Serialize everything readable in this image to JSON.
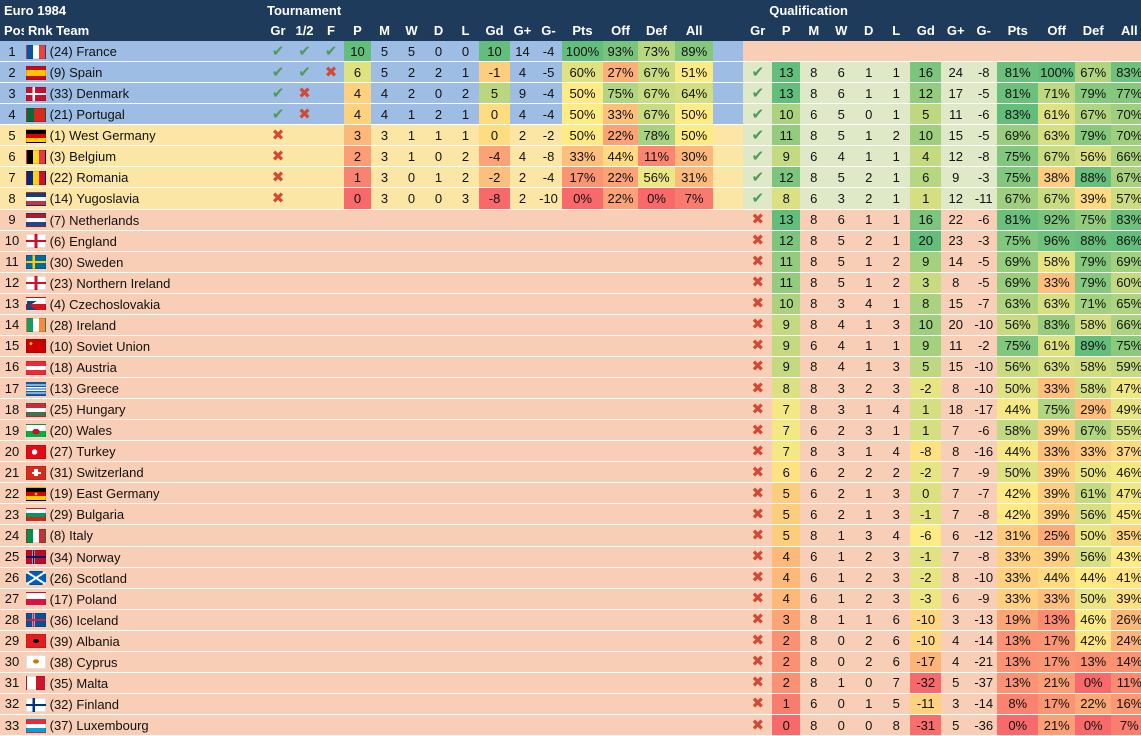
{
  "title": "Euro 1984",
  "group_headers": {
    "tournament": "Tournament",
    "qualification": "Qualification"
  },
  "columns": {
    "pos": "Pos",
    "rnk_team": "Rnk Team",
    "tournament": [
      "Gr",
      "1/2",
      "F",
      "P",
      "M",
      "W",
      "D",
      "L",
      "Gd",
      "G+",
      "G-",
      "Pts",
      "Off",
      "Def",
      "All"
    ],
    "qualification": [
      "Gr",
      "P",
      "M",
      "W",
      "D",
      "L",
      "Gd",
      "G+",
      "G-",
      "Pts",
      "Off",
      "Def",
      "All"
    ]
  },
  "colors": {
    "header_bg": "#1f3b5c",
    "zone_blue": "#9dbde4",
    "zone_yellow": "#fbe6a6",
    "zone_peach": "#f8cfb6",
    "scale_low": "#f8696b",
    "scale_mid": "#ffeb84",
    "scale_high": "#63be7b",
    "check": "#4f9a5c",
    "cross": "#d24a35"
  },
  "rows": [
    {
      "pos": "1",
      "rank": "(24)",
      "team": "France",
      "flag": "france-flag",
      "zone": "blue",
      "t": {
        "gr": "ok",
        "semi": "ok",
        "final": "ok",
        "P": "10",
        "M": "5",
        "W": "5",
        "D": "0",
        "L": "0",
        "Gd": "10",
        "Gplus": "14",
        "Gminus": "-4",
        "Pts": "100%",
        "Off": "93%",
        "Def": "73%",
        "All": "89%"
      },
      "q": null
    },
    {
      "pos": "2",
      "rank": "(9)",
      "team": "Spain",
      "flag": "spain-flag",
      "zone": "blue",
      "t": {
        "gr": "ok",
        "semi": "ok",
        "final": "x",
        "P": "6",
        "M": "5",
        "W": "2",
        "D": "2",
        "L": "1",
        "Gd": "-1",
        "Gplus": "4",
        "Gminus": "-5",
        "Pts": "60%",
        "Off": "27%",
        "Def": "67%",
        "All": "51%"
      },
      "q": {
        "gr": "ok",
        "P": "13",
        "M": "8",
        "W": "6",
        "D": "1",
        "L": "1",
        "Gd": "16",
        "Gplus": "24",
        "Gminus": "-8",
        "Pts": "81%",
        "Off": "100%",
        "Def": "67%",
        "All": "83%"
      }
    },
    {
      "pos": "3",
      "rank": "(33)",
      "team": "Denmark",
      "flag": "denmark-flag",
      "zone": "blue",
      "t": {
        "gr": "ok",
        "semi": "x",
        "final": "",
        "P": "4",
        "M": "4",
        "W": "2",
        "D": "0",
        "L": "2",
        "Gd": "5",
        "Gplus": "9",
        "Gminus": "-4",
        "Pts": "50%",
        "Off": "75%",
        "Def": "67%",
        "All": "64%"
      },
      "q": {
        "gr": "ok",
        "P": "13",
        "M": "8",
        "W": "6",
        "D": "1",
        "L": "1",
        "Gd": "12",
        "Gplus": "17",
        "Gminus": "-5",
        "Pts": "81%",
        "Off": "71%",
        "Def": "79%",
        "All": "77%"
      }
    },
    {
      "pos": "4",
      "rank": "(21)",
      "team": "Portugal",
      "flag": "portugal-flag",
      "zone": "blue",
      "t": {
        "gr": "ok",
        "semi": "x",
        "final": "",
        "P": "4",
        "M": "4",
        "W": "1",
        "D": "2",
        "L": "1",
        "Gd": "0",
        "Gplus": "4",
        "Gminus": "-4",
        "Pts": "50%",
        "Off": "33%",
        "Def": "67%",
        "All": "50%"
      },
      "q": {
        "gr": "ok",
        "P": "10",
        "M": "6",
        "W": "5",
        "D": "0",
        "L": "1",
        "Gd": "5",
        "Gplus": "11",
        "Gminus": "-6",
        "Pts": "83%",
        "Off": "61%",
        "Def": "67%",
        "All": "70%"
      }
    },
    {
      "pos": "5",
      "rank": "(1)",
      "team": "West Germany",
      "flag": "west-germany-flag",
      "zone": "yellow",
      "t": {
        "gr": "x",
        "semi": "",
        "final": "",
        "P": "3",
        "M": "3",
        "W": "1",
        "D": "1",
        "L": "1",
        "Gd": "0",
        "Gplus": "2",
        "Gminus": "-2",
        "Pts": "50%",
        "Off": "22%",
        "Def": "78%",
        "All": "50%"
      },
      "q": {
        "gr": "ok",
        "P": "11",
        "M": "8",
        "W": "5",
        "D": "1",
        "L": "2",
        "Gd": "10",
        "Gplus": "15",
        "Gminus": "-5",
        "Pts": "69%",
        "Off": "63%",
        "Def": "79%",
        "All": "70%"
      }
    },
    {
      "pos": "6",
      "rank": "(3)",
      "team": "Belgium",
      "flag": "belgium-flag",
      "zone": "yellow",
      "t": {
        "gr": "x",
        "semi": "",
        "final": "",
        "P": "2",
        "M": "3",
        "W": "1",
        "D": "0",
        "L": "2",
        "Gd": "-4",
        "Gplus": "4",
        "Gminus": "-8",
        "Pts": "33%",
        "Off": "44%",
        "Def": "11%",
        "All": "30%"
      },
      "q": {
        "gr": "ok",
        "P": "9",
        "M": "6",
        "W": "4",
        "D": "1",
        "L": "1",
        "Gd": "4",
        "Gplus": "12",
        "Gminus": "-8",
        "Pts": "75%",
        "Off": "67%",
        "Def": "56%",
        "All": "66%"
      }
    },
    {
      "pos": "7",
      "rank": "(22)",
      "team": "Romania",
      "flag": "romania-flag",
      "zone": "yellow",
      "t": {
        "gr": "x",
        "semi": "",
        "final": "",
        "P": "1",
        "M": "3",
        "W": "0",
        "D": "1",
        "L": "2",
        "Gd": "-2",
        "Gplus": "2",
        "Gminus": "-4",
        "Pts": "17%",
        "Off": "22%",
        "Def": "56%",
        "All": "31%"
      },
      "q": {
        "gr": "ok",
        "P": "12",
        "M": "8",
        "W": "5",
        "D": "2",
        "L": "1",
        "Gd": "6",
        "Gplus": "9",
        "Gminus": "-3",
        "Pts": "75%",
        "Off": "38%",
        "Def": "88%",
        "All": "67%"
      }
    },
    {
      "pos": "8",
      "rank": "(14)",
      "team": "Yugoslavia",
      "flag": "yugoslavia-flag",
      "zone": "yellow",
      "t": {
        "gr": "x",
        "semi": "",
        "final": "",
        "P": "0",
        "M": "3",
        "W": "0",
        "D": "0",
        "L": "3",
        "Gd": "-8",
        "Gplus": "2",
        "Gminus": "-10",
        "Pts": "0%",
        "Off": "22%",
        "Def": "0%",
        "All": "7%"
      },
      "q": {
        "gr": "ok",
        "P": "8",
        "M": "6",
        "W": "3",
        "D": "2",
        "L": "1",
        "Gd": "1",
        "Gplus": "12",
        "Gminus": "-11",
        "Pts": "67%",
        "Off": "67%",
        "Def": "39%",
        "All": "57%"
      }
    },
    {
      "pos": "9",
      "rank": "(7)",
      "team": "Netherlands",
      "flag": "netherlands-flag",
      "zone": "peach",
      "t": null,
      "q": {
        "gr": "x",
        "P": "13",
        "M": "8",
        "W": "6",
        "D": "1",
        "L": "1",
        "Gd": "16",
        "Gplus": "22",
        "Gminus": "-6",
        "Pts": "81%",
        "Off": "92%",
        "Def": "75%",
        "All": "83%"
      }
    },
    {
      "pos": "10",
      "rank": "(6)",
      "team": "England",
      "flag": "england-flag",
      "zone": "peach",
      "t": null,
      "q": {
        "gr": "x",
        "P": "12",
        "M": "8",
        "W": "5",
        "D": "2",
        "L": "1",
        "Gd": "20",
        "Gplus": "23",
        "Gminus": "-3",
        "Pts": "75%",
        "Off": "96%",
        "Def": "88%",
        "All": "86%"
      }
    },
    {
      "pos": "11",
      "rank": "(30)",
      "team": "Sweden",
      "flag": "sweden-flag",
      "zone": "peach",
      "t": null,
      "q": {
        "gr": "x",
        "P": "11",
        "M": "8",
        "W": "5",
        "D": "1",
        "L": "2",
        "Gd": "9",
        "Gplus": "14",
        "Gminus": "-5",
        "Pts": "69%",
        "Off": "58%",
        "Def": "79%",
        "All": "69%"
      }
    },
    {
      "pos": "12",
      "rank": "(23)",
      "team": "Northern Ireland",
      "flag": "northern-ireland-flag",
      "zone": "peach",
      "t": null,
      "q": {
        "gr": "x",
        "P": "11",
        "M": "8",
        "W": "5",
        "D": "1",
        "L": "2",
        "Gd": "3",
        "Gplus": "8",
        "Gminus": "-5",
        "Pts": "69%",
        "Off": "33%",
        "Def": "79%",
        "All": "60%"
      }
    },
    {
      "pos": "13",
      "rank": "(4)",
      "team": "Czechoslovakia",
      "flag": "czechoslovakia-flag",
      "zone": "peach",
      "t": null,
      "q": {
        "gr": "x",
        "P": "10",
        "M": "8",
        "W": "3",
        "D": "4",
        "L": "1",
        "Gd": "8",
        "Gplus": "15",
        "Gminus": "-7",
        "Pts": "63%",
        "Off": "63%",
        "Def": "71%",
        "All": "65%"
      }
    },
    {
      "pos": "14",
      "rank": "(28)",
      "team": "Ireland",
      "flag": "ireland-flag",
      "zone": "peach",
      "t": null,
      "q": {
        "gr": "x",
        "P": "9",
        "M": "8",
        "W": "4",
        "D": "1",
        "L": "3",
        "Gd": "10",
        "Gplus": "20",
        "Gminus": "-10",
        "Pts": "56%",
        "Off": "83%",
        "Def": "58%",
        "All": "66%"
      }
    },
    {
      "pos": "15",
      "rank": "(10)",
      "team": "Soviet Union",
      "flag": "soviet-union-flag",
      "zone": "peach",
      "t": null,
      "q": {
        "gr": "x",
        "P": "9",
        "M": "6",
        "W": "4",
        "D": "1",
        "L": "1",
        "Gd": "9",
        "Gplus": "11",
        "Gminus": "-2",
        "Pts": "75%",
        "Off": "61%",
        "Def": "89%",
        "All": "75%"
      }
    },
    {
      "pos": "16",
      "rank": "(18)",
      "team": "Austria",
      "flag": "austria-flag",
      "zone": "peach",
      "t": null,
      "q": {
        "gr": "x",
        "P": "9",
        "M": "8",
        "W": "4",
        "D": "1",
        "L": "3",
        "Gd": "5",
        "Gplus": "15",
        "Gminus": "-10",
        "Pts": "56%",
        "Off": "63%",
        "Def": "58%",
        "All": "59%"
      }
    },
    {
      "pos": "17",
      "rank": "(13)",
      "team": "Greece",
      "flag": "greece-flag",
      "zone": "peach",
      "t": null,
      "q": {
        "gr": "x",
        "P": "8",
        "M": "8",
        "W": "3",
        "D": "2",
        "L": "3",
        "Gd": "-2",
        "Gplus": "8",
        "Gminus": "-10",
        "Pts": "50%",
        "Off": "33%",
        "Def": "58%",
        "All": "47%"
      }
    },
    {
      "pos": "18",
      "rank": "(25)",
      "team": "Hungary",
      "flag": "hungary-flag",
      "zone": "peach",
      "t": null,
      "q": {
        "gr": "x",
        "P": "7",
        "M": "8",
        "W": "3",
        "D": "1",
        "L": "4",
        "Gd": "1",
        "Gplus": "18",
        "Gminus": "-17",
        "Pts": "44%",
        "Off": "75%",
        "Def": "29%",
        "All": "49%"
      }
    },
    {
      "pos": "19",
      "rank": "(20)",
      "team": "Wales",
      "flag": "wales-flag",
      "zone": "peach",
      "t": null,
      "q": {
        "gr": "x",
        "P": "7",
        "M": "6",
        "W": "2",
        "D": "3",
        "L": "1",
        "Gd": "1",
        "Gplus": "7",
        "Gminus": "-6",
        "Pts": "58%",
        "Off": "39%",
        "Def": "67%",
        "All": "55%"
      }
    },
    {
      "pos": "20",
      "rank": "(27)",
      "team": "Turkey",
      "flag": "turkey-flag",
      "zone": "peach",
      "t": null,
      "q": {
        "gr": "x",
        "P": "7",
        "M": "8",
        "W": "3",
        "D": "1",
        "L": "4",
        "Gd": "-8",
        "Gplus": "8",
        "Gminus": "-16",
        "Pts": "44%",
        "Off": "33%",
        "Def": "33%",
        "All": "37%"
      }
    },
    {
      "pos": "21",
      "rank": "(31)",
      "team": "Switzerland",
      "flag": "switzerland-flag",
      "zone": "peach",
      "t": null,
      "q": {
        "gr": "x",
        "P": "6",
        "M": "6",
        "W": "2",
        "D": "2",
        "L": "2",
        "Gd": "-2",
        "Gplus": "7",
        "Gminus": "-9",
        "Pts": "50%",
        "Off": "39%",
        "Def": "50%",
        "All": "46%"
      }
    },
    {
      "pos": "22",
      "rank": "(19)",
      "team": "East Germany",
      "flag": "east-germany-flag",
      "zone": "peach",
      "t": null,
      "q": {
        "gr": "x",
        "P": "5",
        "M": "6",
        "W": "2",
        "D": "1",
        "L": "3",
        "Gd": "0",
        "Gplus": "7",
        "Gminus": "-7",
        "Pts": "42%",
        "Off": "39%",
        "Def": "61%",
        "All": "47%"
      }
    },
    {
      "pos": "23",
      "rank": "(29)",
      "team": "Bulgaria",
      "flag": "bulgaria-flag",
      "zone": "peach",
      "t": null,
      "q": {
        "gr": "x",
        "P": "5",
        "M": "6",
        "W": "2",
        "D": "1",
        "L": "3",
        "Gd": "-1",
        "Gplus": "7",
        "Gminus": "-8",
        "Pts": "42%",
        "Off": "39%",
        "Def": "56%",
        "All": "45%"
      }
    },
    {
      "pos": "24",
      "rank": "(8)",
      "team": "Italy",
      "flag": "italy-flag",
      "zone": "peach",
      "t": null,
      "q": {
        "gr": "x",
        "P": "5",
        "M": "8",
        "W": "1",
        "D": "3",
        "L": "4",
        "Gd": "-6",
        "Gplus": "6",
        "Gminus": "-12",
        "Pts": "31%",
        "Off": "25%",
        "Def": "50%",
        "All": "35%"
      }
    },
    {
      "pos": "25",
      "rank": "(34)",
      "team": "Norway",
      "flag": "norway-flag",
      "zone": "peach",
      "t": null,
      "q": {
        "gr": "x",
        "P": "4",
        "M": "6",
        "W": "1",
        "D": "2",
        "L": "3",
        "Gd": "-1",
        "Gplus": "7",
        "Gminus": "-8",
        "Pts": "33%",
        "Off": "39%",
        "Def": "56%",
        "All": "43%"
      }
    },
    {
      "pos": "26",
      "rank": "(26)",
      "team": "Scotland",
      "flag": "scotland-flag",
      "zone": "peach",
      "t": null,
      "q": {
        "gr": "x",
        "P": "4",
        "M": "6",
        "W": "1",
        "D": "2",
        "L": "3",
        "Gd": "-2",
        "Gplus": "8",
        "Gminus": "-10",
        "Pts": "33%",
        "Off": "44%",
        "Def": "44%",
        "All": "41%"
      }
    },
    {
      "pos": "27",
      "rank": "(17)",
      "team": "Poland",
      "flag": "poland-flag",
      "zone": "peach",
      "t": null,
      "q": {
        "gr": "x",
        "P": "4",
        "M": "6",
        "W": "1",
        "D": "2",
        "L": "3",
        "Gd": "-3",
        "Gplus": "6",
        "Gminus": "-9",
        "Pts": "33%",
        "Off": "33%",
        "Def": "50%",
        "All": "39%"
      }
    },
    {
      "pos": "28",
      "rank": "(36)",
      "team": "Iceland",
      "flag": "iceland-flag",
      "zone": "peach",
      "t": null,
      "q": {
        "gr": "x",
        "P": "3",
        "M": "8",
        "W": "1",
        "D": "1",
        "L": "6",
        "Gd": "-10",
        "Gplus": "3",
        "Gminus": "-13",
        "Pts": "19%",
        "Off": "13%",
        "Def": "46%",
        "All": "26%"
      }
    },
    {
      "pos": "29",
      "rank": "(39)",
      "team": "Albania",
      "flag": "albania-flag",
      "zone": "peach",
      "t": null,
      "q": {
        "gr": "x",
        "P": "2",
        "M": "8",
        "W": "0",
        "D": "2",
        "L": "6",
        "Gd": "-10",
        "Gplus": "4",
        "Gminus": "-14",
        "Pts": "13%",
        "Off": "17%",
        "Def": "42%",
        "All": "24%"
      }
    },
    {
      "pos": "30",
      "rank": "(38)",
      "team": "Cyprus",
      "flag": "cyprus-flag",
      "zone": "peach",
      "t": null,
      "q": {
        "gr": "x",
        "P": "2",
        "M": "8",
        "W": "0",
        "D": "2",
        "L": "6",
        "Gd": "-17",
        "Gplus": "4",
        "Gminus": "-21",
        "Pts": "13%",
        "Off": "17%",
        "Def": "13%",
        "All": "14%"
      }
    },
    {
      "pos": "31",
      "rank": "(35)",
      "team": "Malta",
      "flag": "malta-flag",
      "zone": "peach",
      "t": null,
      "q": {
        "gr": "x",
        "P": "2",
        "M": "8",
        "W": "1",
        "D": "0",
        "L": "7",
        "Gd": "-32",
        "Gplus": "5",
        "Gminus": "-37",
        "Pts": "13%",
        "Off": "21%",
        "Def": "0%",
        "All": "11%"
      }
    },
    {
      "pos": "32",
      "rank": "(32)",
      "team": "Finland",
      "flag": "finland-flag",
      "zone": "peach",
      "t": null,
      "q": {
        "gr": "x",
        "P": "1",
        "M": "6",
        "W": "0",
        "D": "1",
        "L": "5",
        "Gd": "-11",
        "Gplus": "3",
        "Gminus": "-14",
        "Pts": "8%",
        "Off": "17%",
        "Def": "22%",
        "All": "16%"
      }
    },
    {
      "pos": "33",
      "rank": "(37)",
      "team": "Luxembourg",
      "flag": "luxembourg-flag",
      "zone": "peach",
      "t": null,
      "q": {
        "gr": "x",
        "P": "0",
        "M": "8",
        "W": "0",
        "D": "0",
        "L": "8",
        "Gd": "-31",
        "Gplus": "5",
        "Gminus": "-36",
        "Pts": "0%",
        "Off": "21%",
        "Def": "0%",
        "All": "7%"
      }
    }
  ]
}
